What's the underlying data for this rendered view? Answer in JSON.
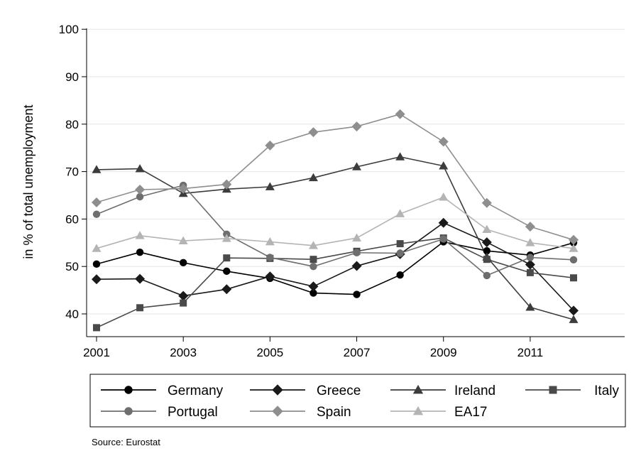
{
  "chart_data": {
    "type": "line",
    "title": "",
    "xlabel": "",
    "ylabel": "in % of total unemployment",
    "x": [
      2001,
      2002,
      2003,
      2004,
      2005,
      2006,
      2007,
      2008,
      2009,
      2010,
      2011,
      2012
    ],
    "xticks": [
      "2001",
      "2003",
      "2005",
      "2007",
      "2009",
      "2011"
    ],
    "yticks": [
      "40",
      "50",
      "60",
      "70",
      "80",
      "90",
      "100"
    ],
    "ylim": [
      35,
      102
    ],
    "xlim": [
      2001,
      2012
    ],
    "grid": "horizontal",
    "legend_placement": "bottom",
    "source": "Source: Eurostat",
    "series": [
      {
        "name": "Germany",
        "color": "#000000",
        "marker": "circle",
        "values": [
          50.5,
          53.0,
          50.8,
          49.0,
          47.5,
          44.4,
          44.1,
          48.2,
          55.2,
          53.3,
          52.4,
          55.0
        ]
      },
      {
        "name": "Greece",
        "color": "#1a1a1a",
        "marker": "diamond",
        "values": [
          47.3,
          47.4,
          43.8,
          45.2,
          47.9,
          45.8,
          50.1,
          52.6,
          59.2,
          55.1,
          50.4,
          40.7
        ]
      },
      {
        "name": "Ireland",
        "color": "#3c3c3c",
        "marker": "triangle",
        "values": [
          70.4,
          70.6,
          65.4,
          66.3,
          66.8,
          68.7,
          71.0,
          73.1,
          71.2,
          52.0,
          41.4,
          38.8
        ]
      },
      {
        "name": "Italy",
        "color": "#4a4a4a",
        "marker": "square",
        "values": [
          37.1,
          41.3,
          42.3,
          51.8,
          51.7,
          51.5,
          53.2,
          54.8,
          56.0,
          51.5,
          48.7,
          47.6
        ]
      },
      {
        "name": "Portugal",
        "color": "#6e6e6e",
        "marker": "circle",
        "values": [
          61.0,
          64.7,
          67.1,
          56.8,
          51.9,
          50.0,
          52.9,
          52.8,
          55.8,
          48.1,
          51.9,
          51.4
        ]
      },
      {
        "name": "Spain",
        "color": "#8e8e8e",
        "marker": "diamond",
        "values": [
          63.5,
          66.2,
          66.4,
          67.3,
          75.5,
          78.3,
          79.5,
          82.1,
          76.3,
          63.4,
          58.4,
          55.6
        ]
      },
      {
        "name": "EA17",
        "color": "#b4b4b4",
        "marker": "triangle",
        "values": [
          53.8,
          56.5,
          55.4,
          55.9,
          55.2,
          54.4,
          56.0,
          61.1,
          64.6,
          57.8,
          55.0,
          53.8
        ]
      }
    ]
  }
}
